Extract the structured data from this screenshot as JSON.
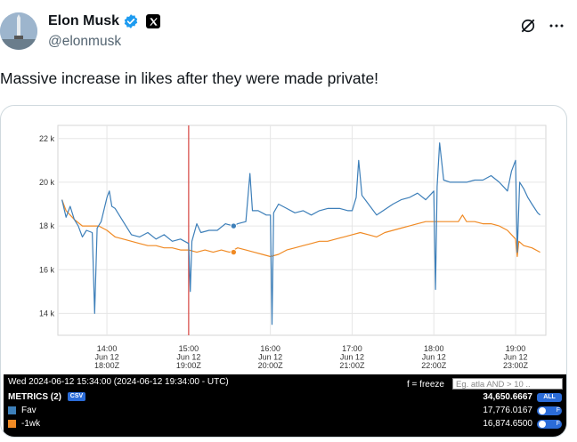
{
  "author": {
    "display_name": "Elon Musk",
    "handle": "@elonmusk",
    "verified": true,
    "affiliate_badge": "x-logo-icon"
  },
  "header_actions": {
    "grok_icon": "grok-icon",
    "more_icon": "more-icon"
  },
  "tweet": {
    "text": "Massive increase in likes after they were made private!"
  },
  "chart_data": {
    "type": "line",
    "title": "",
    "xlabel": "",
    "ylabel": "",
    "ylim": [
      13000,
      22600
    ],
    "yticks": [
      "22 k",
      "20 k",
      "18 k",
      "16 k",
      "14 k"
    ],
    "xticks": [
      {
        "time": "14:00",
        "date": "Jun 12",
        "utc": "18:00Z"
      },
      {
        "time": "15:00",
        "date": "Jun 12",
        "utc": "19:00Z"
      },
      {
        "time": "16:00",
        "date": "Jun 12",
        "utc": "20:00Z"
      },
      {
        "time": "17:00",
        "date": "Jun 12",
        "utc": "21:00Z"
      },
      {
        "time": "18:00",
        "date": "Jun 12",
        "utc": "22:00Z"
      },
      {
        "time": "19:00",
        "date": "Jun 12",
        "utc": "23:00Z"
      }
    ],
    "grid": true,
    "marker_time": "15:00",
    "series": [
      {
        "name": "Fav",
        "color": "#3d7fb9",
        "points": [
          [
            13.45,
            19200
          ],
          [
            13.5,
            18400
          ],
          [
            13.55,
            18900
          ],
          [
            13.6,
            18300
          ],
          [
            13.65,
            18000
          ],
          [
            13.7,
            17500
          ],
          [
            13.75,
            17800
          ],
          [
            13.82,
            17700
          ],
          [
            13.85,
            14000
          ],
          [
            13.88,
            17900
          ],
          [
            13.93,
            18200
          ],
          [
            14.0,
            19300
          ],
          [
            14.03,
            19600
          ],
          [
            14.06,
            18900
          ],
          [
            14.1,
            18800
          ],
          [
            14.2,
            18200
          ],
          [
            14.3,
            17600
          ],
          [
            14.4,
            17500
          ],
          [
            14.5,
            17700
          ],
          [
            14.6,
            17400
          ],
          [
            14.7,
            17600
          ],
          [
            14.8,
            17300
          ],
          [
            14.9,
            17400
          ],
          [
            15.0,
            17200
          ],
          [
            15.02,
            15000
          ],
          [
            15.04,
            17300
          ],
          [
            15.1,
            18100
          ],
          [
            15.15,
            17700
          ],
          [
            15.25,
            17800
          ],
          [
            15.35,
            17800
          ],
          [
            15.45,
            18100
          ],
          [
            15.55,
            18000
          ],
          [
            15.6,
            18100
          ],
          [
            15.7,
            18200
          ],
          [
            15.75,
            20400
          ],
          [
            15.78,
            18700
          ],
          [
            15.85,
            18700
          ],
          [
            15.95,
            18500
          ],
          [
            16.0,
            18500
          ],
          [
            16.02,
            13500
          ],
          [
            16.04,
            18600
          ],
          [
            16.1,
            19000
          ],
          [
            16.2,
            18800
          ],
          [
            16.3,
            18600
          ],
          [
            16.4,
            18700
          ],
          [
            16.5,
            18500
          ],
          [
            16.6,
            18700
          ],
          [
            16.7,
            18800
          ],
          [
            16.85,
            18800
          ],
          [
            16.95,
            18700
          ],
          [
            17.0,
            18700
          ],
          [
            17.05,
            19300
          ],
          [
            17.08,
            21000
          ],
          [
            17.12,
            19400
          ],
          [
            17.2,
            19000
          ],
          [
            17.3,
            18500
          ],
          [
            17.38,
            18700
          ],
          [
            17.5,
            19000
          ],
          [
            17.6,
            19200
          ],
          [
            17.7,
            19300
          ],
          [
            17.8,
            19500
          ],
          [
            17.9,
            19200
          ],
          [
            17.95,
            19400
          ],
          [
            18.0,
            19600
          ],
          [
            18.02,
            15100
          ],
          [
            18.04,
            19800
          ],
          [
            18.07,
            21800
          ],
          [
            18.12,
            20100
          ],
          [
            18.2,
            20000
          ],
          [
            18.3,
            20000
          ],
          [
            18.4,
            20000
          ],
          [
            18.5,
            20100
          ],
          [
            18.6,
            20100
          ],
          [
            18.7,
            20300
          ],
          [
            18.8,
            20000
          ],
          [
            18.85,
            19800
          ],
          [
            18.9,
            19600
          ],
          [
            18.95,
            20500
          ],
          [
            19.0,
            21000
          ],
          [
            19.02,
            16800
          ],
          [
            19.05,
            20000
          ],
          [
            19.1,
            19700
          ],
          [
            19.15,
            19300
          ],
          [
            19.2,
            19000
          ],
          [
            19.27,
            18600
          ],
          [
            19.3,
            18500
          ]
        ]
      },
      {
        "name": "-1wk",
        "color": "#f08a24",
        "points": [
          [
            13.45,
            19200
          ],
          [
            13.5,
            18700
          ],
          [
            13.6,
            18300
          ],
          [
            13.7,
            18000
          ],
          [
            13.8,
            18000
          ],
          [
            13.9,
            18000
          ],
          [
            14.0,
            17800
          ],
          [
            14.1,
            17500
          ],
          [
            14.2,
            17400
          ],
          [
            14.3,
            17300
          ],
          [
            14.4,
            17200
          ],
          [
            14.5,
            17100
          ],
          [
            14.6,
            17100
          ],
          [
            14.7,
            17000
          ],
          [
            14.8,
            17000
          ],
          [
            14.9,
            16900
          ],
          [
            15.0,
            16900
          ],
          [
            15.1,
            16800
          ],
          [
            15.2,
            16900
          ],
          [
            15.3,
            16800
          ],
          [
            15.4,
            16900
          ],
          [
            15.5,
            16800
          ],
          [
            15.6,
            17000
          ],
          [
            15.7,
            16900
          ],
          [
            15.8,
            16800
          ],
          [
            15.9,
            16700
          ],
          [
            16.0,
            16600
          ],
          [
            16.1,
            16700
          ],
          [
            16.2,
            16900
          ],
          [
            16.3,
            17000
          ],
          [
            16.4,
            17100
          ],
          [
            16.5,
            17200
          ],
          [
            16.6,
            17300
          ],
          [
            16.7,
            17300
          ],
          [
            16.8,
            17400
          ],
          [
            16.9,
            17500
          ],
          [
            17.0,
            17600
          ],
          [
            17.1,
            17700
          ],
          [
            17.2,
            17600
          ],
          [
            17.3,
            17500
          ],
          [
            17.4,
            17700
          ],
          [
            17.5,
            17800
          ],
          [
            17.6,
            17900
          ],
          [
            17.7,
            18000
          ],
          [
            17.8,
            18100
          ],
          [
            17.9,
            18200
          ],
          [
            18.0,
            18200
          ],
          [
            18.1,
            18200
          ],
          [
            18.2,
            18200
          ],
          [
            18.3,
            18200
          ],
          [
            18.35,
            18500
          ],
          [
            18.4,
            18200
          ],
          [
            18.5,
            18200
          ],
          [
            18.6,
            18100
          ],
          [
            18.7,
            18100
          ],
          [
            18.8,
            18000
          ],
          [
            18.9,
            17800
          ],
          [
            19.0,
            17400
          ],
          [
            19.02,
            16600
          ],
          [
            19.04,
            17300
          ],
          [
            19.1,
            17100
          ],
          [
            19.2,
            17000
          ],
          [
            19.3,
            16800
          ]
        ]
      }
    ]
  },
  "legend": {
    "timestamp": "Wed 2024-06-12 15:34:00 (2024-06-12 19:34:00 - UTC)",
    "freeze_hint": "f = freeze",
    "search_placeholder": "Eg. atla AND > 10 ..",
    "metrics_label": "METRICS (2)",
    "csv_label": "CSV",
    "total_value": "34,650.6667",
    "all_label": "ALL",
    "rows": [
      {
        "name": "Fav",
        "value": "17,776.0167",
        "color": "#3d7fb9",
        "flag": "F"
      },
      {
        "name": "-1wk",
        "value": "16,874.6500",
        "color": "#f08a24",
        "flag": "F"
      }
    ]
  }
}
